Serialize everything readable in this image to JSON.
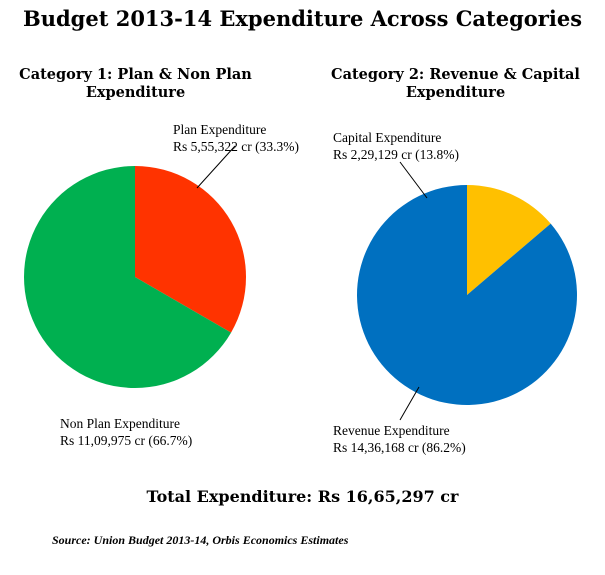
{
  "title": "Budget 2013-14 Expenditure Across Categories",
  "total_label": "Total Expenditure:  Rs 16,65,297  cr",
  "source": "Source: Union Budget 2013-14, Orbis Economics Estimates",
  "chart_data": [
    {
      "type": "pie",
      "title": "Category 1: Plan & Non Plan Expenditure",
      "slices": [
        {
          "name": "Plan Expenditure",
          "value": 555322,
          "value_label": "Rs 5,55,322 cr (33.3%)",
          "percent": 33.3,
          "color": "#ff3300"
        },
        {
          "name": "Non Plan Expenditure",
          "value": 1109975,
          "value_label": "Rs 11,09,975 cr (66.7%)",
          "percent": 66.7,
          "color": "#00b050"
        }
      ]
    },
    {
      "type": "pie",
      "title": "Category 2: Revenue & Capital Expenditure",
      "slices": [
        {
          "name": "Capital Expenditure",
          "value": 229129,
          "value_label": "Rs 2,29,129 cr (13.8%)",
          "percent": 13.8,
          "color": "#ffc000"
        },
        {
          "name": "Revenue Expenditure",
          "value": 1436168,
          "value_label": "Rs 14,36,168 cr (86.2%)",
          "percent": 86.2,
          "color": "#0070c0"
        }
      ]
    }
  ]
}
